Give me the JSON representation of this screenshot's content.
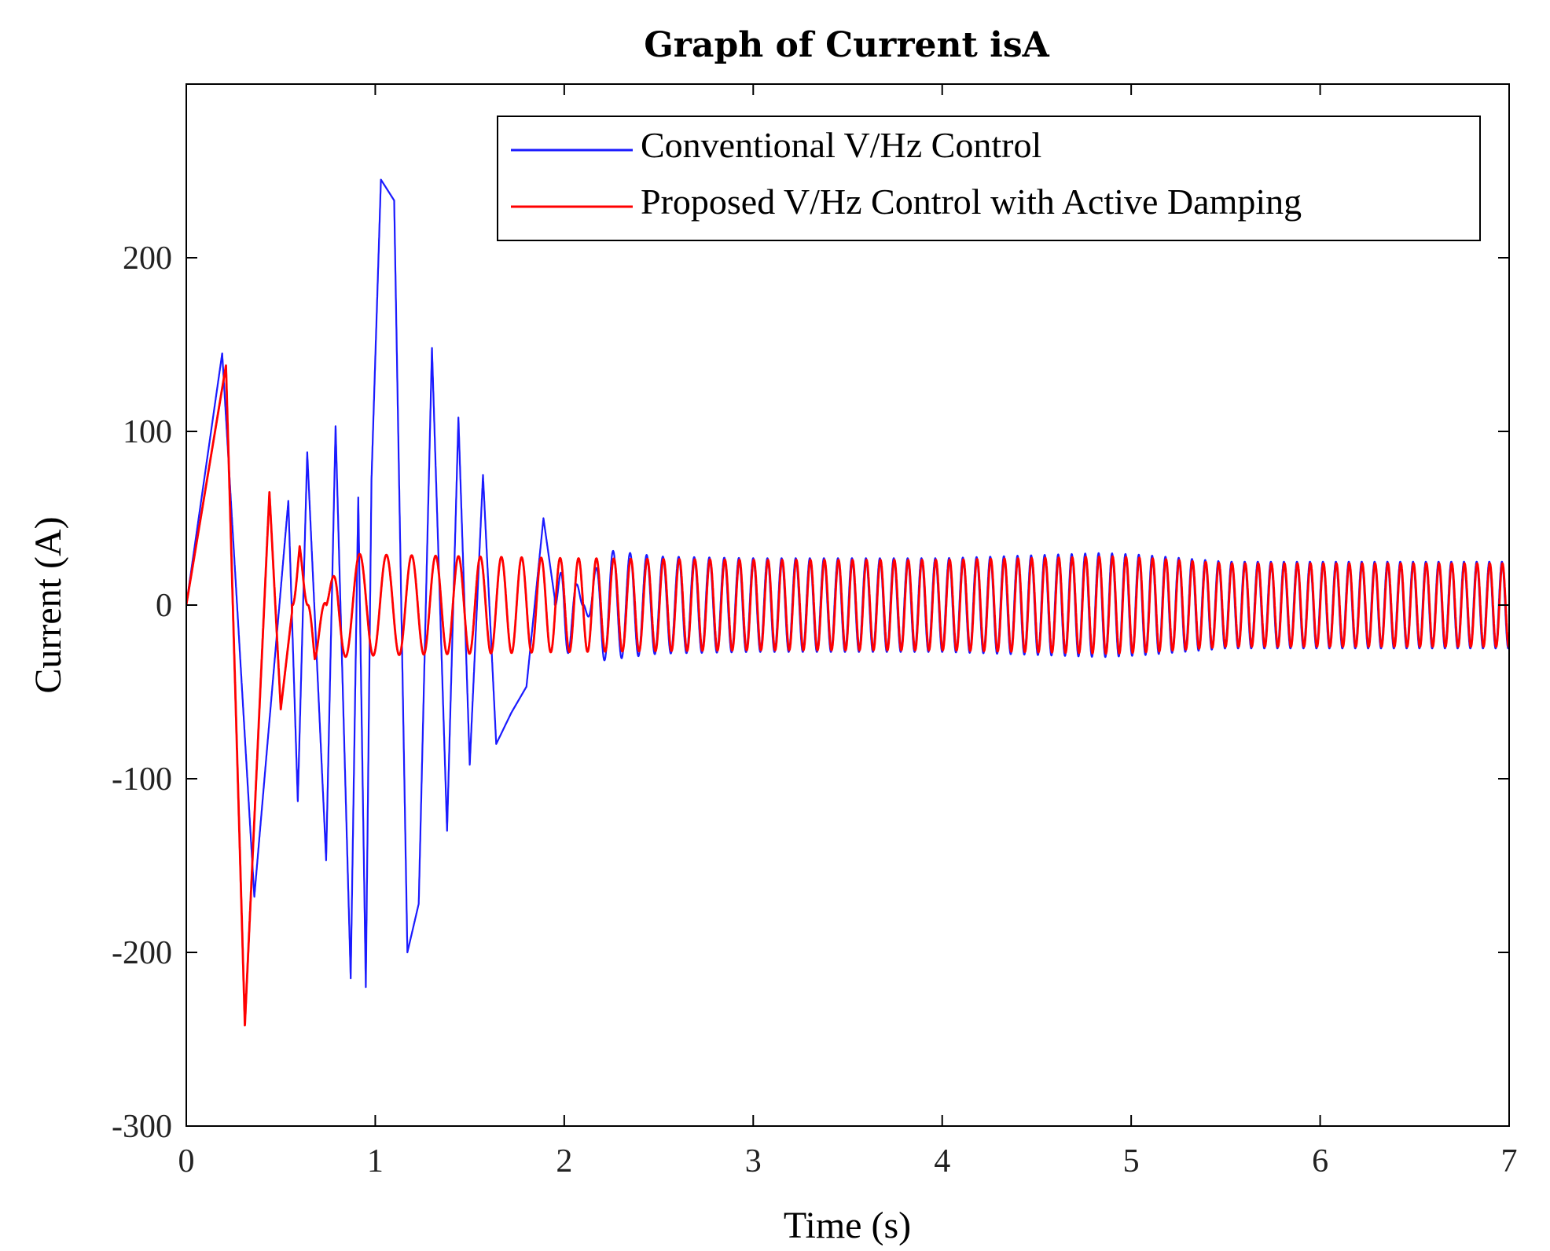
{
  "chart_data": {
    "type": "line",
    "title": "Graph of Current isA",
    "xlabel": "Time (s)",
    "ylabel": "Current (A)",
    "xlim": [
      0,
      7
    ],
    "ylim": [
      -300,
      300
    ],
    "xticks": [
      0,
      1,
      2,
      3,
      4,
      5,
      6,
      7
    ],
    "xtick_labels": [
      "0",
      "1",
      "2",
      "3",
      "4",
      "5",
      "6",
      "7"
    ],
    "yticks": [
      200,
      100,
      0,
      -100,
      -200,
      -300
    ],
    "ytick_labels": [
      "200",
      "100",
      "0",
      "-100",
      "-200",
      "-300"
    ],
    "grid": false,
    "legend_position": "top-right",
    "series": [
      {
        "name": "Conventional V/Hz Control",
        "color": "#1a1aff",
        "envelope": [
          {
            "t": 0.0,
            "v": 0
          },
          {
            "t": 0.19,
            "v": 145
          },
          {
            "t": 0.36,
            "v": -168
          },
          {
            "t": 0.54,
            "v": 60
          },
          {
            "t": 0.59,
            "v": -113
          },
          {
            "t": 0.64,
            "v": 88
          },
          {
            "t": 0.74,
            "v": -147
          },
          {
            "t": 0.79,
            "v": 103
          },
          {
            "t": 0.87,
            "v": -215
          },
          {
            "t": 0.91,
            "v": 62
          },
          {
            "t": 0.95,
            "v": -220
          },
          {
            "t": 0.98,
            "v": 72
          },
          {
            "t": 1.03,
            "v": 245
          },
          {
            "t": 1.1,
            "v": 233
          },
          {
            "t": 1.17,
            "v": -200
          },
          {
            "t": 1.23,
            "v": -172
          },
          {
            "t": 1.3,
            "v": 148
          },
          {
            "t": 1.38,
            "v": -130
          },
          {
            "t": 1.44,
            "v": 108
          },
          {
            "t": 1.5,
            "v": -92
          },
          {
            "t": 1.57,
            "v": 75
          },
          {
            "t": 1.64,
            "v": -80
          },
          {
            "t": 1.72,
            "v": -62
          },
          {
            "t": 1.8,
            "v": -47
          },
          {
            "t": 1.89,
            "v": 50
          },
          {
            "t": 2.0,
            "v": -35
          },
          {
            "t": 2.2,
            "v": 32
          },
          {
            "t": 2.5,
            "v": 28
          },
          {
            "t": 3.0,
            "v": 27
          },
          {
            "t": 4.0,
            "v": 27
          },
          {
            "t": 4.85,
            "v": 30
          },
          {
            "t": 5.05,
            "v": 29
          },
          {
            "t": 5.5,
            "v": 25
          },
          {
            "t": 7.0,
            "v": 25
          }
        ]
      },
      {
        "name": "Proposed V/Hz Control with Active Damping",
        "color": "#ff0000",
        "envelope": [
          {
            "t": 0.0,
            "v": 0
          },
          {
            "t": 0.21,
            "v": 138
          },
          {
            "t": 0.31,
            "v": -242
          },
          {
            "t": 0.44,
            "v": 65
          },
          {
            "t": 0.5,
            "v": -60
          },
          {
            "t": 0.6,
            "v": 34
          },
          {
            "t": 0.68,
            "v": -32
          },
          {
            "t": 0.8,
            "v": 30
          },
          {
            "t": 1.0,
            "v": 29
          },
          {
            "t": 2.0,
            "v": 27
          },
          {
            "t": 3.0,
            "v": 26
          },
          {
            "t": 4.0,
            "v": 26
          },
          {
            "t": 4.9,
            "v": 28
          },
          {
            "t": 5.1,
            "v": 27
          },
          {
            "t": 5.5,
            "v": 24
          },
          {
            "t": 7.0,
            "v": 24
          }
        ]
      }
    ]
  }
}
